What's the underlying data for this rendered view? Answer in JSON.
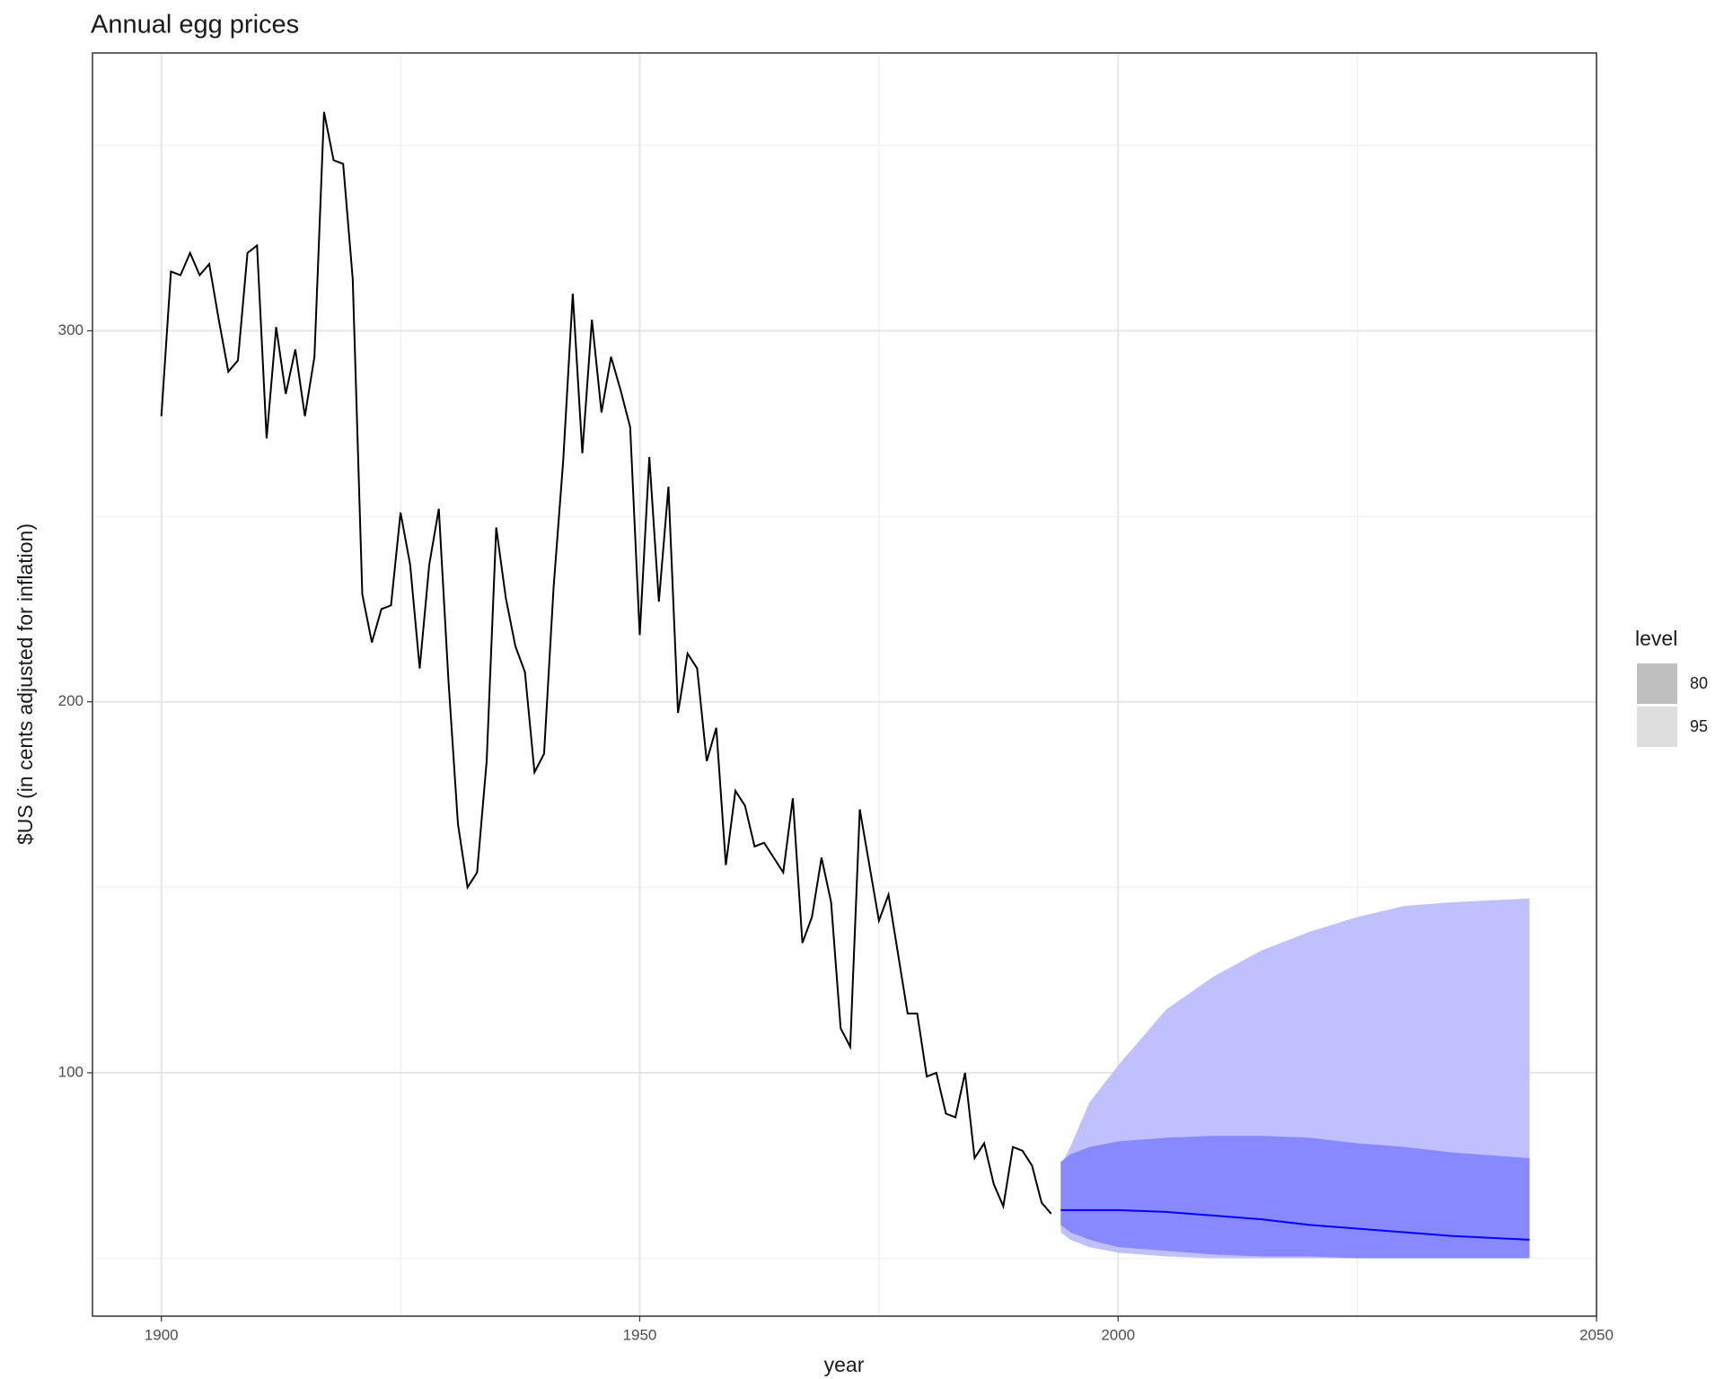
{
  "chart_data": {
    "type": "line",
    "title": "Annual egg prices",
    "x_label": "year",
    "y_label": "$US (in cents adjusted for inflation)",
    "x": [
      1900,
      1901,
      1902,
      1903,
      1904,
      1905,
      1906,
      1907,
      1908,
      1909,
      1910,
      1911,
      1912,
      1913,
      1914,
      1915,
      1916,
      1917,
      1918,
      1919,
      1920,
      1921,
      1922,
      1923,
      1924,
      1925,
      1926,
      1927,
      1928,
      1929,
      1930,
      1931,
      1932,
      1933,
      1934,
      1935,
      1936,
      1937,
      1938,
      1939,
      1940,
      1941,
      1942,
      1943,
      1944,
      1945,
      1946,
      1947,
      1948,
      1949,
      1950,
      1951,
      1952,
      1953,
      1954,
      1955,
      1956,
      1957,
      1958,
      1959,
      1960,
      1961,
      1962,
      1963,
      1964,
      1965,
      1966,
      1967,
      1968,
      1969,
      1970,
      1971,
      1972,
      1973,
      1974,
      1975,
      1976,
      1977,
      1978,
      1979,
      1980,
      1981,
      1982,
      1983,
      1984,
      1985,
      1986,
      1987,
      1988,
      1989,
      1990,
      1991,
      1992,
      1993
    ],
    "values": [
      277,
      316,
      315,
      321,
      315,
      318,
      303,
      289,
      292,
      321,
      323,
      271,
      301,
      283,
      295,
      277,
      293,
      359,
      346,
      345,
      314,
      229,
      216,
      225,
      226,
      251,
      237,
      209,
      237,
      252,
      206,
      167,
      150,
      154,
      184,
      247,
      228,
      215,
      208,
      181,
      186,
      231,
      265,
      310,
      267,
      303,
      278,
      293,
      284,
      274,
      218,
      266,
      227,
      258,
      197,
      213,
      209,
      184,
      193,
      156,
      176,
      172,
      161,
      162,
      158,
      154,
      174,
      135,
      142,
      158,
      146,
      112,
      107,
      171,
      156,
      141,
      148,
      132,
      116,
      116,
      99,
      100,
      89,
      88,
      100,
      77,
      81,
      70,
      64,
      80,
      79,
      75,
      65,
      62
    ],
    "color": "#000000",
    "forecast_x": [
      1994,
      1995,
      1997,
      2000,
      2005,
      2010,
      2015,
      2020,
      2025,
      2030,
      2035,
      2043
    ],
    "forecast": {
      "values": [
        63,
        63,
        63,
        63,
        62.5,
        61.5,
        60.5,
        59,
        58,
        57,
        56,
        55
      ],
      "color": "#0000ff"
    },
    "bands": [
      {
        "name": "95",
        "color": "#c0c0ff",
        "legend_color": "#dedede",
        "lower": [
          57,
          55,
          53,
          51.5,
          50.5,
          50,
          50,
          50,
          50,
          50,
          50,
          50
        ],
        "upper": [
          75,
          80,
          92,
          102,
          117,
          126,
          133,
          138,
          142,
          145,
          146,
          147
        ]
      },
      {
        "name": "80",
        "color": "#8888ff",
        "legend_color": "#bfbfbf",
        "lower": [
          59,
          57,
          55,
          53,
          52,
          51,
          50.5,
          50.5,
          50,
          50,
          50,
          50
        ],
        "upper": [
          76,
          78,
          80,
          81.5,
          82.5,
          83,
          83,
          82.5,
          81,
          80,
          78.5,
          77
        ]
      }
    ],
    "legend_title": "level",
    "xlim": [
      1892.8,
      2050
    ],
    "ylim": [
      34.4,
      374.9
    ],
    "xticks": [
      1900,
      1950,
      2000,
      2050
    ],
    "yticks": [
      100,
      200,
      300
    ],
    "xminor": [
      1925,
      1975,
      2025
    ],
    "yminor": [
      50,
      150,
      250,
      350
    ],
    "grid": true
  }
}
